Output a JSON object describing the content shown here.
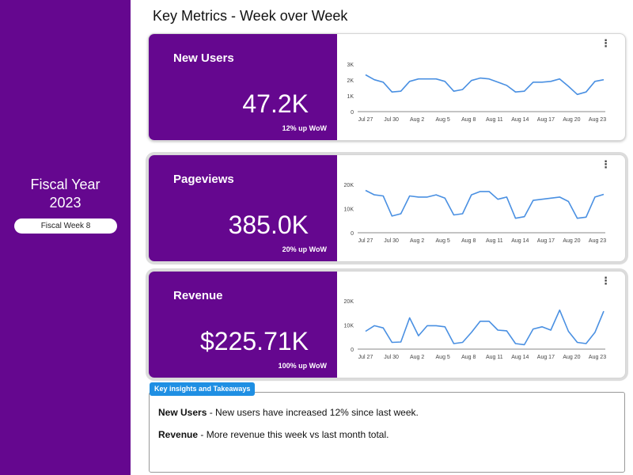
{
  "page": {
    "title": "Key Metrics - Week over Week"
  },
  "sidebar": {
    "fiscal_year_line1": "Fiscal Year",
    "fiscal_year_line2": "2023",
    "week_pill": "Fiscal Week 8"
  },
  "colors": {
    "sidebar": "#65078f",
    "kpi": "#65078f",
    "line": "#4a90e2",
    "insights_tab": "#1f8fe3"
  },
  "icons": {
    "card_menu": "more-vert-icon"
  },
  "cards": [
    {
      "label": "New Users",
      "value": "47.2K",
      "change": "12% up WoW"
    },
    {
      "label": "Pageviews",
      "value": "385.0K",
      "change": "20% up WoW"
    },
    {
      "label": "Revenue",
      "value": "$225.71K",
      "change": "100% up WoW"
    }
  ],
  "chart_data": [
    {
      "type": "line",
      "x_ticks": [
        "Jul 27",
        "Jul 30",
        "Aug 2",
        "Aug 5",
        "Aug 8",
        "Aug 11",
        "Aug 14",
        "Aug 17",
        "Aug 20",
        "Aug 23"
      ],
      "y_ticks": [
        "3K",
        "2K",
        "1K",
        "0"
      ],
      "ylim": [
        0,
        3000
      ],
      "values": [
        2250,
        1950,
        1800,
        1200,
        1250,
        1850,
        2000,
        2000,
        2000,
        1850,
        1250,
        1350,
        1900,
        2050,
        2000,
        1800,
        1600,
        1200,
        1250,
        1800,
        1800,
        1850,
        2000,
        1550,
        1050,
        1200,
        1850,
        1950
      ]
    },
    {
      "type": "line",
      "x_ticks": [
        "Jul 27",
        "Jul 30",
        "Aug 2",
        "Aug 5",
        "Aug 8",
        "Aug 11",
        "Aug 14",
        "Aug 17",
        "Aug 20",
        "Aug 23"
      ],
      "y_ticks": [
        "20K",
        "10K",
        "0"
      ],
      "ylim": [
        0,
        22000
      ],
      "values": [
        19000,
        17000,
        16500,
        7500,
        8500,
        16500,
        16000,
        16000,
        17000,
        15500,
        8000,
        8500,
        17000,
        18500,
        18500,
        15000,
        16000,
        6500,
        7200,
        14500,
        15000,
        15500,
        16000,
        14000,
        6500,
        7000,
        16000,
        17200
      ]
    },
    {
      "type": "line",
      "x_ticks": [
        "Jul 27",
        "Jul 30",
        "Aug 2",
        "Aug 5",
        "Aug 8",
        "Aug 11",
        "Aug 14",
        "Aug 17",
        "Aug 20",
        "Aug 23"
      ],
      "y_ticks": [
        "20K",
        "10K",
        "0"
      ],
      "ylim": [
        0,
        22000
      ],
      "values": [
        8000,
        10500,
        9500,
        3000,
        3200,
        14000,
        6000,
        10500,
        10500,
        10000,
        2500,
        3000,
        7500,
        12500,
        12500,
        8500,
        8200,
        2500,
        2000,
        9000,
        10000,
        8500,
        17500,
        8000,
        3000,
        2500,
        7500,
        17000
      ]
    }
  ],
  "insights": {
    "tab_label": "Key insights and Takeaways",
    "items": [
      {
        "key": "New Users",
        "text": " - New users have increased 12% since last week."
      },
      {
        "key": "Revenue",
        "text": " - More revenue this week vs last month total."
      }
    ]
  }
}
